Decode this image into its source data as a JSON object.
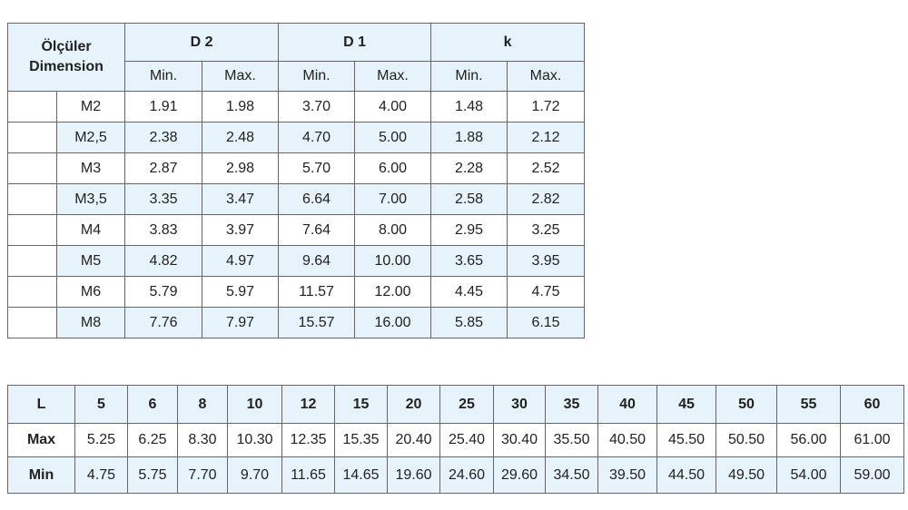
{
  "table1": {
    "corner": [
      "Ölçüler",
      "Dimension"
    ],
    "groups": [
      "D 2",
      "D 1",
      "k"
    ],
    "subheaders": [
      "Min.",
      "Max.",
      "Min.",
      "Max.",
      "Min.",
      "Max."
    ],
    "rows": [
      [
        "M2",
        "1.91",
        "1.98",
        "3.70",
        "4.00",
        "1.48",
        "1.72"
      ],
      [
        "M2,5",
        "2.38",
        "2.48",
        "4.70",
        "5.00",
        "1.88",
        "2.12"
      ],
      [
        "M3",
        "2.87",
        "2.98",
        "5.70",
        "6.00",
        "2.28",
        "2.52"
      ],
      [
        "M3,5",
        "3.35",
        "3.47",
        "6.64",
        "7.00",
        "2.58",
        "2.82"
      ],
      [
        "M4",
        "3.83",
        "3.97",
        "7.64",
        "8.00",
        "2.95",
        "3.25"
      ],
      [
        "M5",
        "4.82",
        "4.97",
        "9.64",
        "10.00",
        "3.65",
        "3.95"
      ],
      [
        "M6",
        "5.79",
        "5.97",
        "11.57",
        "12.00",
        "4.45",
        "4.75"
      ],
      [
        "M8",
        "7.76",
        "7.97",
        "15.57",
        "16.00",
        "5.85",
        "6.15"
      ]
    ]
  },
  "table2": {
    "rows": [
      [
        "L",
        "5",
        "6",
        "8",
        "10",
        "12",
        "15",
        "20",
        "25",
        "30",
        "35",
        "40",
        "45",
        "50",
        "55",
        "60"
      ],
      [
        "Max",
        "5.25",
        "6.25",
        "8.30",
        "10.30",
        "12.35",
        "15.35",
        "20.40",
        "25.40",
        "30.40",
        "35.50",
        "40.50",
        "45.50",
        "50.50",
        "56.00",
        "61.00"
      ],
      [
        "Min",
        "4.75",
        "5.75",
        "7.70",
        "9.70",
        "11.65",
        "14.65",
        "19.60",
        "24.60",
        "29.60",
        "34.50",
        "39.50",
        "44.50",
        "49.50",
        "54.00",
        "59.00"
      ]
    ]
  }
}
